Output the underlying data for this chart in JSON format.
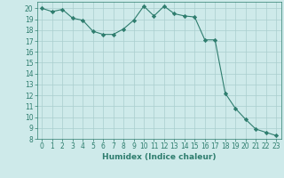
{
  "x": [
    0,
    1,
    2,
    3,
    4,
    5,
    6,
    7,
    8,
    9,
    10,
    11,
    12,
    13,
    14,
    15,
    16,
    17,
    18,
    19,
    20,
    21,
    22,
    23
  ],
  "y": [
    20,
    19.7,
    19.9,
    19.1,
    18.9,
    17.9,
    17.6,
    17.6,
    18.1,
    18.9,
    20.2,
    19.3,
    20.2,
    19.5,
    19.3,
    19.2,
    17.1,
    17.1,
    12.2,
    10.8,
    9.8,
    8.9,
    8.6,
    8.3
  ],
  "line_color": "#2e7d6e",
  "marker": "D",
  "marker_size": 2.2,
  "bg_color": "#ceeaea",
  "grid_color": "#aacece",
  "xlabel": "Humidex (Indice chaleur)",
  "xlim": [
    -0.5,
    23.5
  ],
  "ylim": [
    8,
    20.6
  ],
  "yticks": [
    8,
    9,
    10,
    11,
    12,
    13,
    14,
    15,
    16,
    17,
    18,
    19,
    20
  ],
  "xticks": [
    0,
    1,
    2,
    3,
    4,
    5,
    6,
    7,
    8,
    9,
    10,
    11,
    12,
    13,
    14,
    15,
    16,
    17,
    18,
    19,
    20,
    21,
    22,
    23
  ],
  "tick_color": "#2e7d6e",
  "label_color": "#2e7d6e",
  "axis_fontsize": 5.5,
  "xlabel_fontsize": 6.5,
  "linewidth": 0.8
}
